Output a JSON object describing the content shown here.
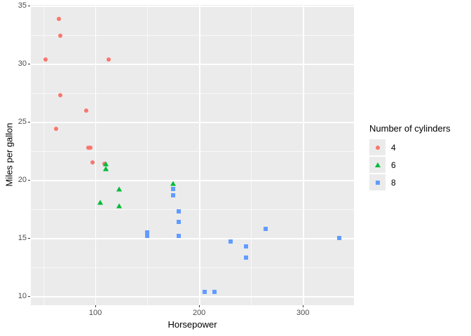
{
  "figure": {
    "background": "#FFFFFF",
    "panel_background": "#EBEBEB",
    "grid_color": "#FFFFFF",
    "axis_text_color": "#4D4D4D",
    "axis_title_color": "#000000",
    "tick_mark_color": "#333333",
    "legend_key_background": "#EBEBEB"
  },
  "chart_data": {
    "type": "scatter",
    "title": "",
    "xlabel": "Horsepower",
    "ylabel": "Miles per gallon",
    "legend_title": "Number of cylinders",
    "legend_position": "right",
    "grid": true,
    "xlim": [
      37.85,
      349.15
    ],
    "ylim": [
      9.225,
      35.075
    ],
    "x_ticks": [
      100,
      200,
      300
    ],
    "y_ticks": [
      10,
      15,
      20,
      25,
      30,
      35
    ],
    "x_minor_ticks": [
      50,
      150,
      250
    ],
    "y_minor_ticks": [
      12.5,
      17.5,
      22.5,
      27.5,
      32.5
    ],
    "series": [
      {
        "name": "4",
        "marker": "circle",
        "color": "#F8766D",
        "points": [
          [
            93,
            22.8
          ],
          [
            62,
            24.4
          ],
          [
            95,
            22.8
          ],
          [
            66,
            32.4
          ],
          [
            52,
            30.4
          ],
          [
            65,
            33.9
          ],
          [
            97,
            21.5
          ],
          [
            66,
            27.3
          ],
          [
            91,
            26.0
          ],
          [
            113,
            30.4
          ],
          [
            109,
            21.4
          ]
        ]
      },
      {
        "name": "6",
        "marker": "triangle",
        "color": "#00BA38",
        "points": [
          [
            110,
            21.0
          ],
          [
            110,
            21.0
          ],
          [
            110,
            21.4
          ],
          [
            105,
            18.1
          ],
          [
            123,
            19.2
          ],
          [
            123,
            17.8
          ],
          [
            175,
            19.7
          ]
        ]
      },
      {
        "name": "8",
        "marker": "square",
        "color": "#619CFF",
        "points": [
          [
            175,
            18.7
          ],
          [
            245,
            14.3
          ],
          [
            180,
            16.4
          ],
          [
            180,
            17.3
          ],
          [
            180,
            15.2
          ],
          [
            205,
            10.4
          ],
          [
            215,
            10.4
          ],
          [
            230,
            14.7
          ],
          [
            150,
            15.5
          ],
          [
            150,
            15.2
          ],
          [
            245,
            13.3
          ],
          [
            175,
            19.2
          ],
          [
            264,
            15.8
          ],
          [
            335,
            15.0
          ]
        ]
      }
    ]
  }
}
